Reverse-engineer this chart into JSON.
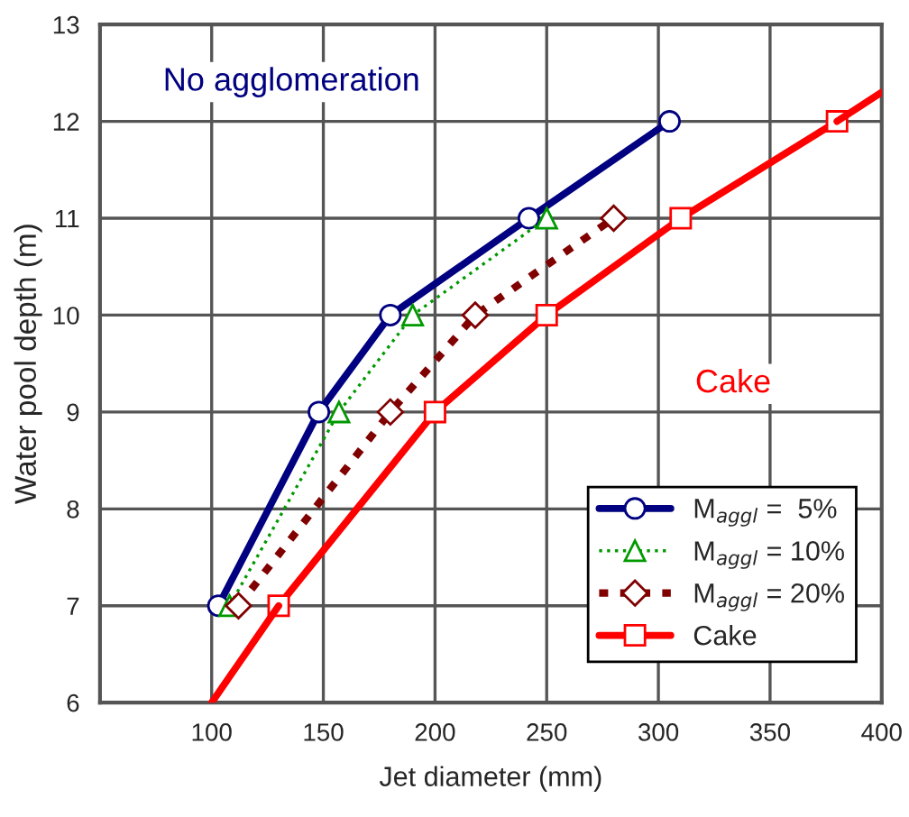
{
  "chart_data": {
    "type": "line",
    "xlabel": "Jet diameter (mm)",
    "ylabel": "Water pool depth (m)",
    "xlim": [
      50,
      400
    ],
    "xticks": [
      {
        "value": 50,
        "label": null
      },
      100,
      150,
      200,
      250,
      300,
      350,
      400
    ],
    "ylim": [
      6,
      13
    ],
    "yticks": [
      6,
      7,
      8,
      9,
      10,
      11,
      12,
      13
    ],
    "grid": true,
    "legend": "bottom right",
    "series": [
      {
        "name": "M$_{aggl}$ =  5%",
        "color": "#000080",
        "marker": "circle",
        "line_style": "solid",
        "x": [
          103,
          148,
          180,
          242,
          305
        ],
        "values": [
          7,
          9,
          10,
          11,
          12
        ]
      },
      {
        "name": "M$_{aggl}$ = 10%",
        "color": "#009900",
        "marker": "triangle",
        "line_style": "dotted",
        "x": [
          108,
          157,
          190,
          250
        ],
        "values": [
          7,
          9,
          10,
          11
        ]
      },
      {
        "name": "M$_{aggl}$ = 20%",
        "color": "#800000",
        "marker": "diamond",
        "line_style": "dashed",
        "x": [
          112,
          180,
          218,
          280
        ],
        "values": [
          7,
          9,
          10,
          11
        ]
      },
      {
        "name": "Cake",
        "color": "#ff0000",
        "marker": "square",
        "line_style": "solid",
        "x": [
          130,
          200,
          250,
          310,
          380
        ],
        "values": [
          7,
          9,
          10,
          11,
          12
        ]
      },
      {
        "color": "#ff0000",
        "marker": "none",
        "line_style": "solid",
        "x": [
          100,
          130,
          255,
          380,
          400
        ],
        "values": [
          6,
          7,
          null,
          12,
          12.3
        ]
      }
    ],
    "annotations": [
      "No agglomeration",
      "Cake"
    ]
  }
}
